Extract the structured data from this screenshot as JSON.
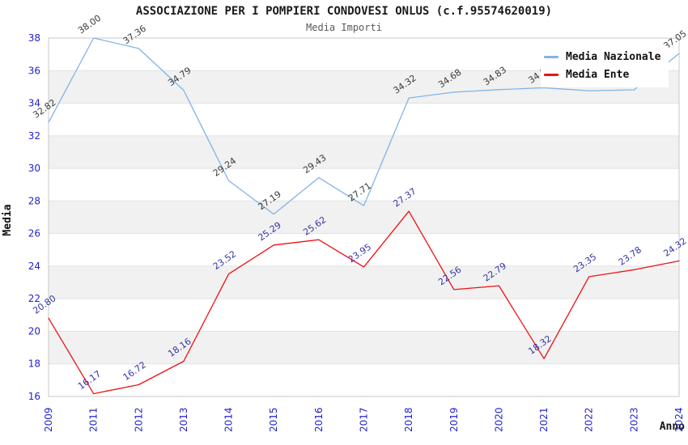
{
  "chart_data": {
    "type": "line",
    "title": "ASSOCIAZIONE PER I POMPIERI CONDOVESI ONLUS (c.f.95574620019)",
    "subtitle": "Media Importi",
    "xlabel": "Anno",
    "ylabel": "Media",
    "categories": [
      "2009",
      "2011",
      "2012",
      "2013",
      "2014",
      "2015",
      "2016",
      "2017",
      "2018",
      "2019",
      "2020",
      "2021",
      "2022",
      "2023",
      "2024"
    ],
    "series": [
      {
        "name": "Media Nazionale",
        "color": "#82b4e6",
        "label_color": "#3a3a3a",
        "values": [
          32.82,
          38.0,
          37.36,
          34.79,
          29.24,
          27.19,
          29.43,
          27.71,
          34.32,
          34.68,
          34.83,
          34.95,
          34.76,
          34.82,
          37.05
        ]
      },
      {
        "name": "Media Ente",
        "color": "#ee1111",
        "label_color": "#3333aa",
        "values": [
          20.8,
          16.17,
          16.72,
          18.16,
          23.52,
          25.29,
          25.62,
          23.95,
          27.37,
          22.56,
          22.79,
          18.32,
          23.35,
          23.78,
          24.32
        ]
      }
    ],
    "ylim": [
      16,
      38
    ],
    "ytick_step": 2,
    "yticks": [
      16,
      18,
      20,
      22,
      24,
      26,
      28,
      30,
      32,
      34,
      36,
      38
    ],
    "grid": "horizontal-bands",
    "legend_position": "top-right",
    "colors": {
      "band_alt": "#f1f1f1",
      "band_main": "#ffffff",
      "grid_line": "#e2e2e2",
      "plot_border": "#c8c8c8",
      "tick_label": "#2323cc",
      "axis_title": "#111111",
      "title": "#1a1a1a",
      "subtitle": "#5a5a5a"
    }
  }
}
